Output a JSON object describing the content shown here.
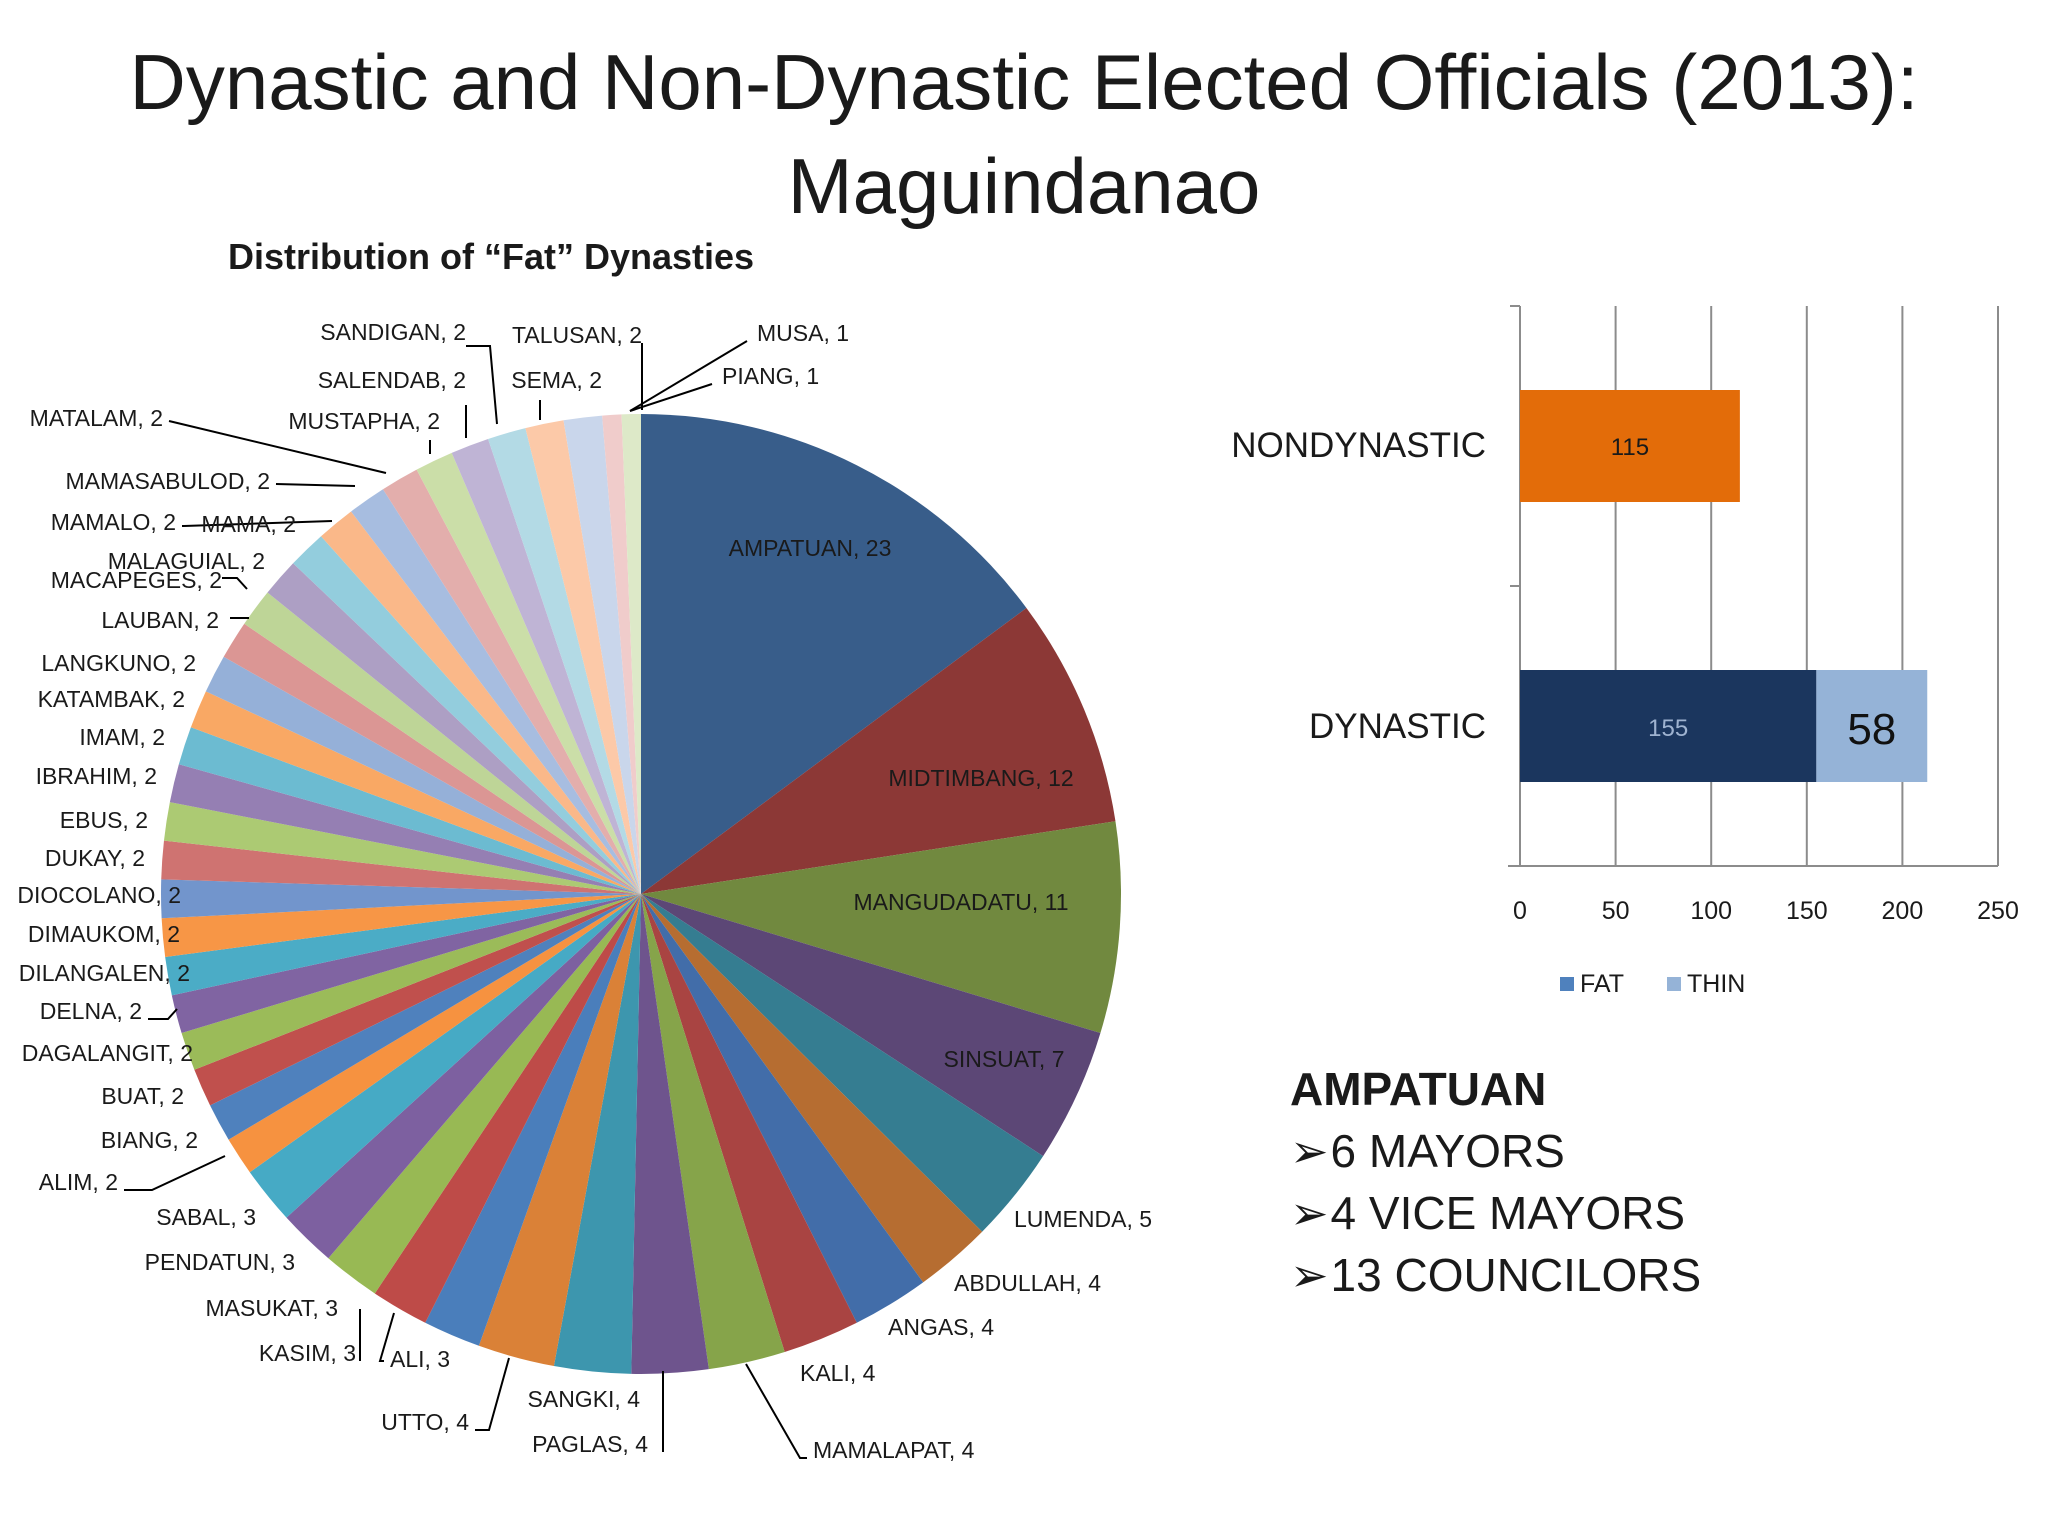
{
  "title": {
    "line1": "Dynastic and Non-Dynastic Elected Officials (2013):",
    "line2": "Maguindanao"
  },
  "chart_data": [
    {
      "type": "pie",
      "title": "Distribution of “Fat” Dynasties",
      "slices": [
        {
          "label": "AMPATUAN",
          "value": 23,
          "color": "#385d8a"
        },
        {
          "label": "MIDTIMBANG",
          "value": 12,
          "color": "#8c3836"
        },
        {
          "label": "MANGUDADATU",
          "value": 11,
          "color": "#71893f"
        },
        {
          "label": "SINSUAT",
          "value": 7,
          "color": "#5c4776"
        },
        {
          "label": "LUMENDA",
          "value": 5,
          "color": "#357d91"
        },
        {
          "label": "ABDULLAH",
          "value": 4,
          "color": "#b66d31"
        },
        {
          "label": "ANGAS",
          "value": 4,
          "color": "#426da9"
        },
        {
          "label": "KALI",
          "value": 4,
          "color": "#a94442"
        },
        {
          "label": "MAMALAPAT",
          "value": 4,
          "color": "#86a44a"
        },
        {
          "label": "PAGLAS",
          "value": 4,
          "color": "#6e548d"
        },
        {
          "label": "SANGKI",
          "value": 4,
          "color": "#3d96ae"
        },
        {
          "label": "UTTO",
          "value": 4,
          "color": "#da8137"
        },
        {
          "label": "ALI",
          "value": 3,
          "color": "#4a7ebb"
        },
        {
          "label": "KASIM",
          "value": 3,
          "color": "#be4b48"
        },
        {
          "label": "MASUKAT",
          "value": 3,
          "color": "#98b954"
        },
        {
          "label": "PENDATUN",
          "value": 3,
          "color": "#7d60a0"
        },
        {
          "label": "SABAL",
          "value": 3,
          "color": "#46aac5"
        },
        {
          "label": "ALIM",
          "value": 2,
          "color": "#f69240"
        },
        {
          "label": "BIANG",
          "value": 2,
          "color": "#4f81bd"
        },
        {
          "label": "BUAT",
          "value": 2,
          "color": "#c0504d"
        },
        {
          "label": "DAGALANGIT",
          "value": 2,
          "color": "#9bbb59"
        },
        {
          "label": "DELNA",
          "value": 2,
          "color": "#8064a2"
        },
        {
          "label": "DILANGALEN",
          "value": 2,
          "color": "#4bacc6"
        },
        {
          "label": "DIMAUKOM",
          "value": 2,
          "color": "#f79646"
        },
        {
          "label": "DIOCOLANO",
          "value": 2,
          "color": "#7295cc"
        },
        {
          "label": "DUKAY",
          "value": 2,
          "color": "#cf7371"
        },
        {
          "label": "EBUS",
          "value": 2,
          "color": "#acca73"
        },
        {
          "label": "IBRAHIM",
          "value": 2,
          "color": "#957fb3"
        },
        {
          "label": "IMAM",
          "value": 2,
          "color": "#6cbbd1"
        },
        {
          "label": "KATAMBAK",
          "value": 2,
          "color": "#f9a864"
        },
        {
          "label": "LANGKUNO",
          "value": 2,
          "color": "#95b0d8"
        },
        {
          "label": "LAUBAN",
          "value": 2,
          "color": "#db9694"
        },
        {
          "label": "MACAPEGES",
          "value": 2,
          "color": "#bed597"
        },
        {
          "label": "MALAGUIAL",
          "value": 2,
          "color": "#ad9fc4"
        },
        {
          "label": "MAMA",
          "value": 2,
          "color": "#93cddd"
        },
        {
          "label": "MAMALO",
          "value": 2,
          "color": "#fab889"
        },
        {
          "label": "MAMASABULOD",
          "value": 2,
          "color": "#a7bde0"
        },
        {
          "label": "MATALAM",
          "value": 2,
          "color": "#e3aeac"
        },
        {
          "label": "MUSTAPHA",
          "value": 2,
          "color": "#cbdea8"
        },
        {
          "label": "SALENDAB",
          "value": 2,
          "color": "#bfb4d5"
        },
        {
          "label": "SANDIGAN",
          "value": 2,
          "color": "#b3dae5"
        },
        {
          "label": "SEMA",
          "value": 2,
          "color": "#fcc9a8"
        },
        {
          "label": "TALUSAN",
          "value": 2,
          "color": "#c9d6eb"
        },
        {
          "label": "MUSA",
          "value": 1,
          "color": "#f0cccb"
        },
        {
          "label": "PIANG",
          "value": 1,
          "color": "#dde9c8"
        }
      ],
      "value_labels": [
        "AMPATUAN, 23",
        "MIDTIMBANG, 12",
        "MANGUDADATU, 11",
        "SINSUAT, 7",
        "LUMENDA, 5",
        "ABDULLAH, 4",
        "ANGAS, 4",
        "KALI, 4",
        "MAMALAPAT, 4",
        "PAGLAS, 4",
        "SANGKI, 4",
        "UTTO, 4",
        "ALI, 3",
        "KASIM, 3",
        "MASUKAT, 3",
        "PENDATUN, 3",
        "SABAL, 3",
        "ALIM, 2",
        "BIANG, 2",
        "BUAT, 2",
        "DAGALANGIT, 2",
        "DELNA, 2",
        "DILANGALEN, 2",
        "DIMAUKOM, 2",
        "DIOCOLANO, 2",
        "DUKAY, 2",
        "EBUS, 2",
        "IBRAHIM, 2",
        "IMAM, 2",
        "KATAMBAK, 2",
        "LANGKUNO, 2",
        "LAUBAN, 2",
        "MACAPEGES, 2",
        "MALAGUIAL, 2",
        "MAMA, 2",
        "MAMALO, 2",
        "MAMASABULOD, 2",
        "MATALAM, 2",
        "MUSTAPHA, 2",
        "SALENDAB, 2",
        "SANDIGAN, 2",
        "SEMA, 2",
        "TALUSAN, 2",
        "MUSA, 1",
        "PIANG, 1"
      ]
    },
    {
      "type": "bar",
      "orientation": "horizontal",
      "stacked": true,
      "categories": [
        "NONDYNASTIC",
        "DYNASTIC"
      ],
      "series": [
        {
          "name": "FAT",
          "values": [
            null,
            155
          ],
          "color": "#1b365e"
        },
        {
          "name": "THIN",
          "values": [
            null,
            58
          ],
          "color": "#95b3d7"
        }
      ],
      "nondynastic": {
        "value": 115,
        "color": "#e36c09"
      },
      "data_labels": {
        "nondynastic": "115",
        "fat": "155",
        "thin": "58"
      },
      "xlim": [
        0,
        250
      ],
      "xticks": [
        "0",
        "50",
        "100",
        "150",
        "200",
        "250"
      ],
      "grid": true,
      "legend": "bottom",
      "legend_swatch_colors": {
        "FAT": "#4f81bd",
        "THIN": "#95b3d7"
      }
    }
  ],
  "ampatuan": {
    "heading": "AMPATUAN",
    "items": [
      "6 MAYORS",
      "4 VICE MAYORS",
      "13 COUNCILORS"
    ]
  }
}
